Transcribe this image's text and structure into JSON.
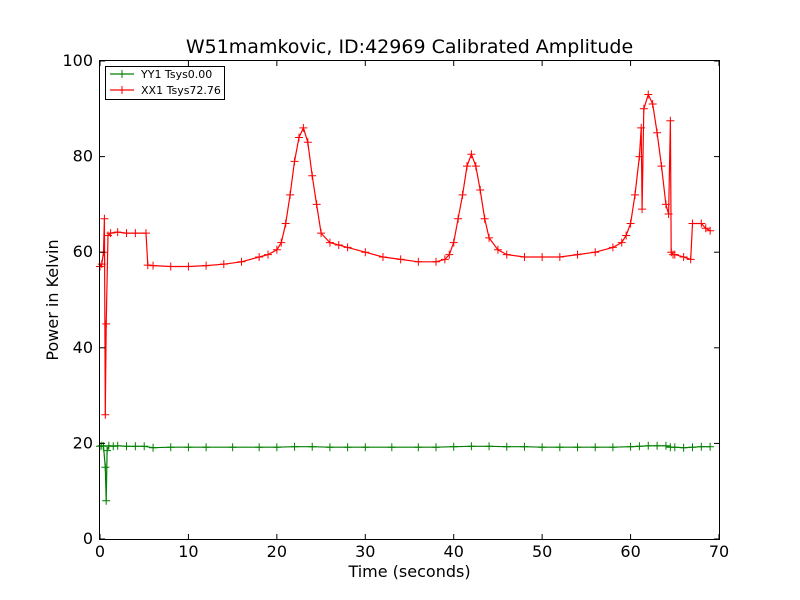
{
  "chart_data": {
    "type": "line",
    "title": "W51mamkovic, ID:42969 Calibrated Amplitude",
    "xlabel": "Time (seconds)",
    "ylabel": "Power in Kelvin",
    "xlim": [
      0,
      70
    ],
    "ylim": [
      0,
      100
    ],
    "xticks": [
      0,
      10,
      20,
      30,
      40,
      50,
      60,
      70
    ],
    "yticks": [
      0,
      20,
      40,
      60,
      80,
      100
    ],
    "xtick_labels": [
      "0",
      "10",
      "20",
      "30",
      "40",
      "50",
      "60",
      "70"
    ],
    "ytick_labels": [
      "0",
      "20",
      "40",
      "60",
      "80",
      "100"
    ],
    "grid": false,
    "legend_position": "top-left",
    "marker": "+",
    "series": [
      {
        "name": "YY1 Tsys0.00",
        "color": "#008000",
        "x": [
          0.0,
          0.2,
          0.4,
          0.6,
          0.7,
          0.8,
          1.0,
          1.5,
          2.0,
          3.0,
          4.0,
          5.0,
          6.0,
          8.0,
          10.0,
          12.0,
          15.0,
          18.0,
          20.0,
          22.0,
          24.0,
          26.0,
          28.0,
          30.0,
          33.0,
          36.0,
          38.0,
          40.0,
          42.0,
          44.0,
          46.0,
          48.0,
          50.0,
          52.0,
          54.0,
          56.0,
          58.0,
          60.0,
          61.0,
          62.0,
          63.0,
          64.0,
          64.5,
          65.0,
          66.0,
          67.0,
          68.0,
          69.0
        ],
        "y": [
          19.4,
          19.5,
          19.4,
          15.0,
          8.0,
          18.5,
          19.5,
          19.4,
          19.5,
          19.4,
          19.4,
          19.4,
          19.1,
          19.2,
          19.2,
          19.2,
          19.2,
          19.2,
          19.2,
          19.3,
          19.3,
          19.2,
          19.2,
          19.2,
          19.2,
          19.2,
          19.2,
          19.3,
          19.4,
          19.4,
          19.3,
          19.3,
          19.2,
          19.2,
          19.2,
          19.2,
          19.2,
          19.3,
          19.4,
          19.5,
          19.5,
          19.5,
          19.2,
          19.2,
          19.1,
          19.2,
          19.3,
          19.3
        ]
      },
      {
        "name": "XX1 Tsys72.76",
        "color": "#ff0000",
        "x": [
          0.0,
          0.2,
          0.4,
          0.5,
          0.6,
          0.7,
          0.9,
          1.2,
          2.0,
          3.0,
          4.0,
          5.2,
          5.4,
          6.0,
          8.0,
          10.0,
          12.0,
          14.0,
          16.0,
          18.0,
          19.0,
          20.0,
          20.5,
          21.0,
          21.5,
          22.0,
          22.5,
          23.0,
          23.5,
          24.0,
          24.5,
          25.0,
          26.0,
          27.0,
          28.0,
          30.0,
          32.0,
          34.0,
          36.0,
          38.0,
          39.0,
          39.5,
          40.0,
          40.5,
          41.0,
          41.5,
          42.0,
          42.5,
          43.0,
          43.5,
          44.0,
          45.0,
          46.0,
          48.0,
          50.0,
          52.0,
          54.0,
          56.0,
          58.0,
          59.0,
          59.5,
          60.0,
          60.5,
          61.0,
          61.2,
          61.3,
          61.5,
          62.0,
          62.5,
          63.0,
          63.5,
          64.0,
          64.3,
          64.5,
          64.6,
          64.8,
          65.0,
          66.0,
          66.8,
          67.0,
          68.0,
          68.5,
          69.0
        ],
        "y": [
          57.0,
          57.5,
          60.0,
          67.0,
          26.0,
          45.0,
          63.5,
          64.0,
          64.2,
          64.0,
          64.0,
          64.0,
          57.3,
          57.2,
          57.0,
          57.0,
          57.2,
          57.5,
          58.0,
          59.0,
          59.5,
          60.5,
          62.0,
          66.0,
          72.0,
          79.0,
          84.0,
          86.0,
          83.0,
          76.0,
          70.0,
          64.0,
          62.0,
          61.5,
          61.0,
          60.0,
          59.0,
          58.5,
          58.0,
          58.0,
          58.5,
          59.5,
          62.0,
          67.0,
          72.0,
          78.0,
          80.5,
          78.0,
          73.0,
          67.0,
          63.0,
          60.5,
          59.5,
          59.0,
          59.0,
          59.0,
          59.5,
          60.0,
          61.0,
          62.0,
          63.5,
          66.0,
          72.0,
          80.0,
          86.0,
          69.0,
          90.0,
          93.0,
          91.0,
          85.0,
          78.0,
          70.0,
          68.0,
          87.5,
          60.0,
          59.5,
          59.5,
          59.0,
          58.5,
          66.0,
          66.0,
          65.0,
          64.5
        ]
      }
    ]
  }
}
